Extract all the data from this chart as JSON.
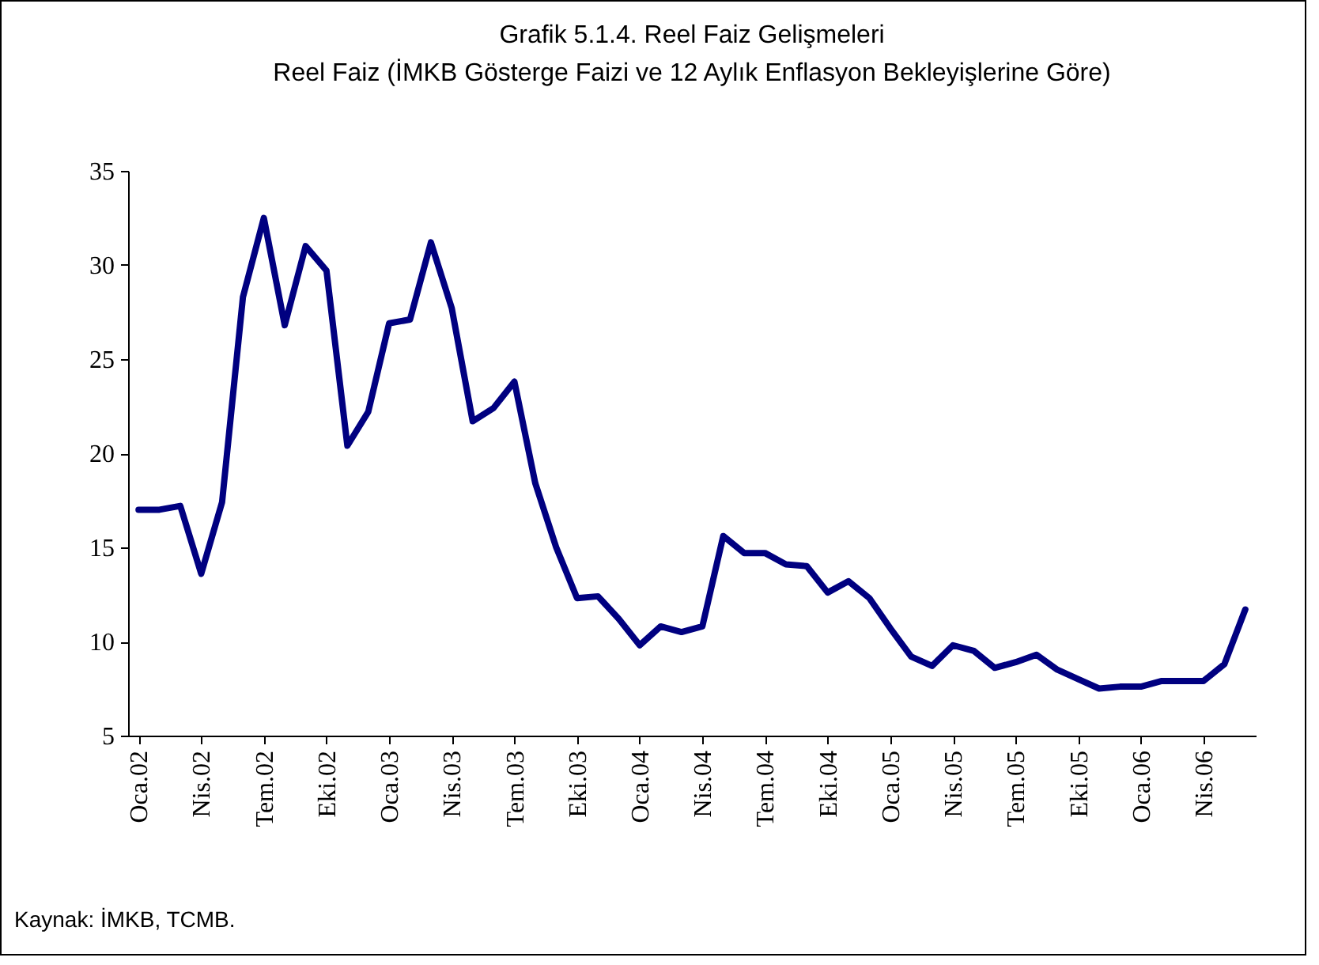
{
  "chart_data": {
    "type": "line",
    "title": "Grafik 5.1.4. Reel Faiz Gelişmeleri",
    "subtitle": "Reel Faiz (İMKB Gösterge Faizi ve 12 Aylık Enflasyon Bekleyişlerine Göre)",
    "categories": [
      "Oca.02",
      null,
      null,
      "Nis.02",
      null,
      null,
      "Tem.02",
      null,
      null,
      "Eki.02",
      null,
      null,
      "Oca.03",
      null,
      null,
      "Nis.03",
      null,
      null,
      "Tem.03",
      null,
      null,
      "Eki.03",
      null,
      null,
      "Oca.04",
      null,
      null,
      "Nis.04",
      null,
      null,
      "Tem.04",
      null,
      null,
      "Eki.04",
      null,
      null,
      "Oca.05",
      null,
      null,
      "Nis.05",
      null,
      null,
      "Tem.05",
      null,
      null,
      "Eki.05",
      null,
      null,
      "Oca.06",
      null,
      null,
      "Nis.06",
      null,
      null
    ],
    "series": [
      {
        "color": "#000080",
        "values": [
          17.0,
          17.0,
          17.2,
          13.6,
          17.4,
          28.3,
          32.5,
          26.8,
          31.0,
          29.7,
          20.4,
          22.2,
          26.9,
          27.1,
          31.2,
          27.7,
          21.7,
          22.4,
          23.8,
          18.4,
          15.0,
          12.3,
          12.4,
          11.2,
          9.8,
          10.8,
          10.5,
          10.8,
          15.6,
          14.7,
          14.7,
          14.1,
          14.0,
          12.6,
          13.2,
          12.3,
          10.7,
          9.2,
          8.7,
          9.8,
          9.5,
          8.6,
          8.9,
          9.3,
          8.5,
          8.0,
          7.5,
          7.6,
          7.6,
          7.9,
          7.9,
          7.9,
          8.8,
          11.7
        ]
      }
    ],
    "ylim": [
      5,
      35
    ],
    "yticks": [
      5,
      10,
      15,
      20,
      25,
      30,
      35
    ],
    "grid": false,
    "marker": "none",
    "line_style": "solid",
    "annotations": [
      "Kaynak: İMKB, TCMB."
    ]
  }
}
